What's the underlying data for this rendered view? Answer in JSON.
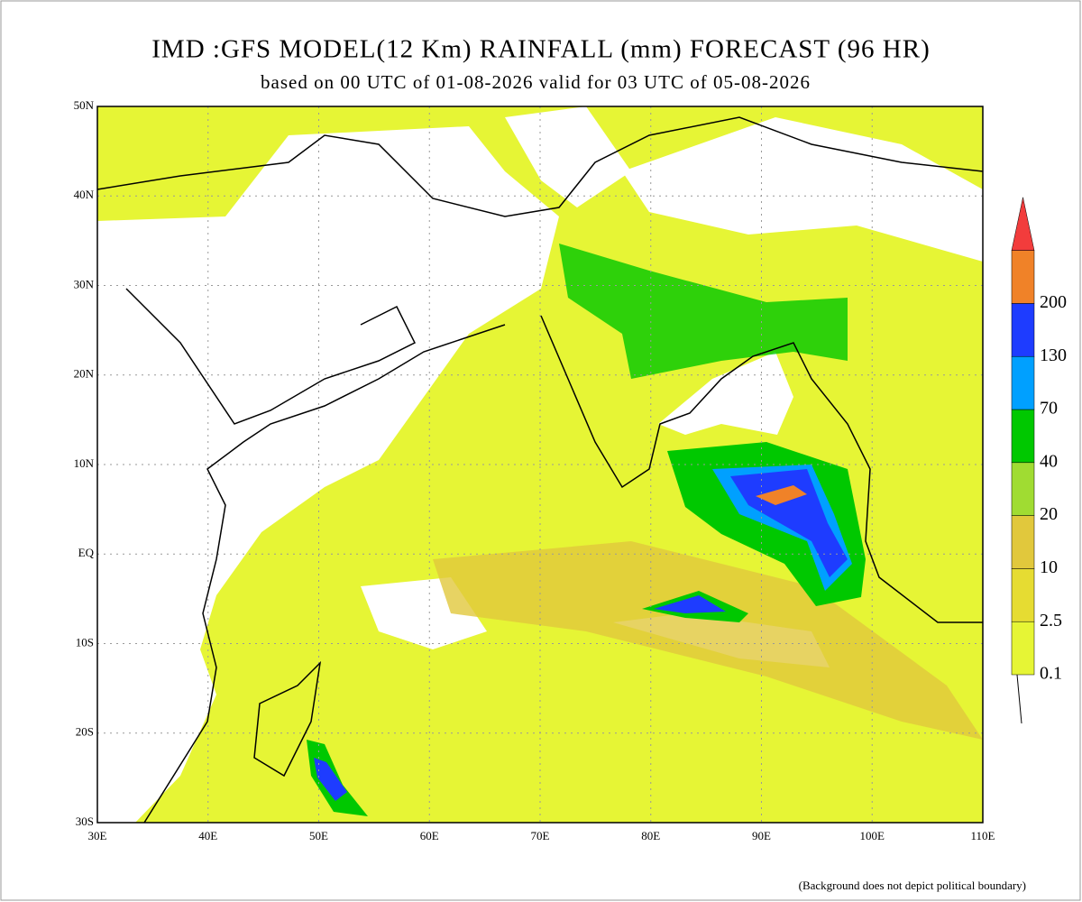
{
  "header": {
    "title": "IMD :GFS MODEL(12 Km) RAINFALL (mm) FORECAST (96 HR)",
    "subtitle": "based on 00 UTC of 01-08-2026 valid for 03 UTC of 05-08-2026"
  },
  "map": {
    "lat_labels": [
      "50N",
      "40N",
      "30N",
      "20N",
      "10N",
      "EQ",
      "10S",
      "20S",
      "30S"
    ],
    "lon_labels": [
      "30E",
      "40E",
      "50E",
      "60E",
      "70E",
      "80E",
      "90E",
      "100E",
      "110E"
    ]
  },
  "legend": {
    "levels": [
      0.1,
      2.5,
      10,
      20,
      40,
      70,
      130,
      200
    ],
    "colors": [
      "#e6f535",
      "#e6dc32",
      "#e1c83c",
      "#a0dc32",
      "#00c800",
      "#00a0ff",
      "#1e3cff",
      "#f08228",
      "#f23c3c"
    ]
  },
  "note": "(Background does not depict political boundary)"
}
